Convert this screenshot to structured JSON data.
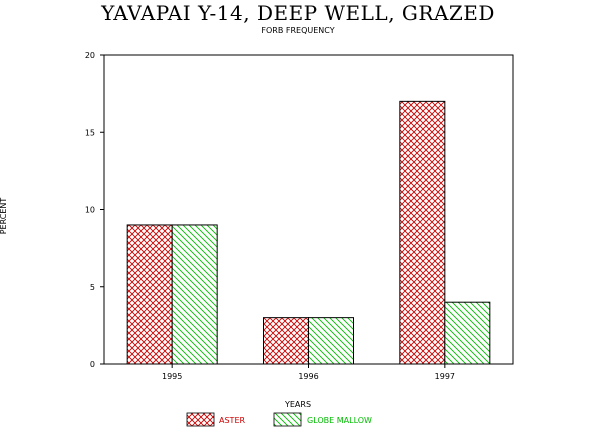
{
  "chart_data": {
    "type": "bar",
    "title": "YAVAPAI Y-14, DEEP WELL, GRAZED",
    "subtitle": "FORB FREQUENCY",
    "xlabel": "YEARS",
    "ylabel": "PERCENT",
    "categories": [
      "1995",
      "1996",
      "1997"
    ],
    "ylim": [
      0,
      20
    ],
    "yticks": [
      0,
      5,
      10,
      15,
      20
    ],
    "grid": false,
    "legend_position": "bottom-center",
    "series": [
      {
        "name": "ASTER",
        "values": [
          9,
          3,
          17
        ],
        "color": "#cc0000",
        "pattern": "crosshatch"
      },
      {
        "name": "GLOBE MALLOW",
        "values": [
          9,
          3,
          4
        ],
        "color": "#00bb00",
        "pattern": "diagonal"
      }
    ]
  }
}
